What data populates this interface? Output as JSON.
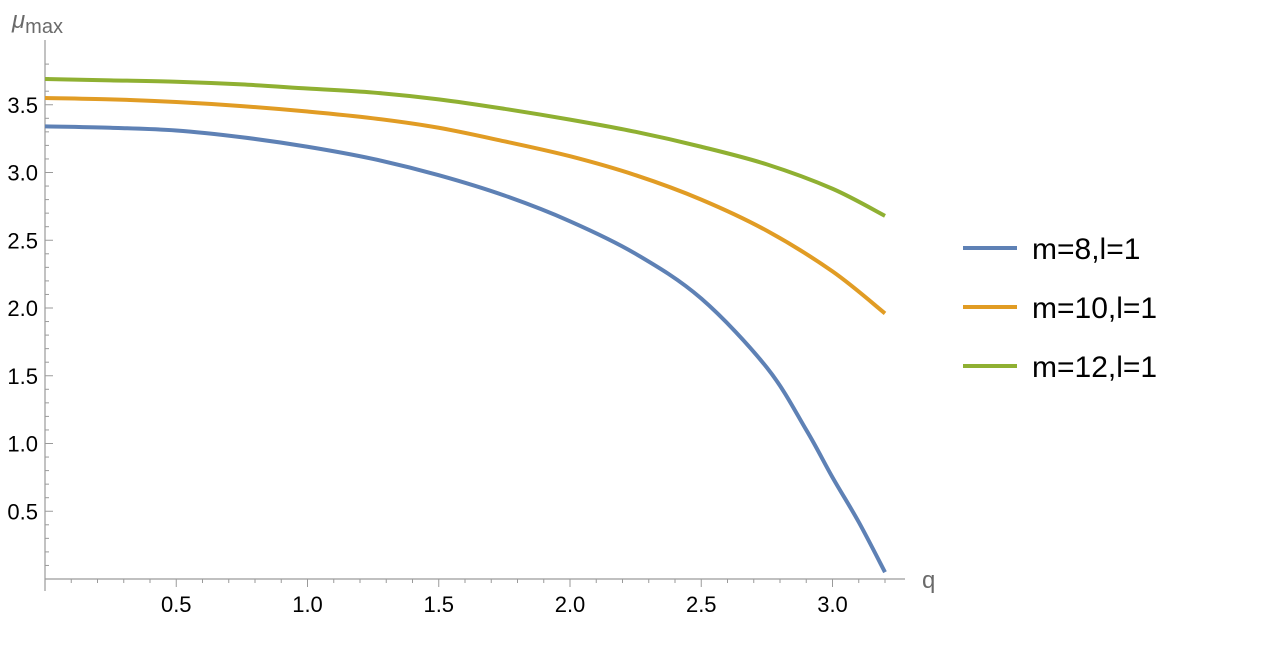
{
  "chart_data": {
    "type": "line",
    "xlabel": "q",
    "ylabel": {
      "main": "μ",
      "subscript": "max"
    },
    "xlim": [
      0,
      3.2
    ],
    "ylim": [
      0,
      3.8
    ],
    "xticks": [
      0.5,
      1.0,
      1.5,
      2.0,
      2.5,
      3.0
    ],
    "xtick_labels": [
      "0.5",
      "1.0",
      "1.5",
      "2.0",
      "2.5",
      "3.0"
    ],
    "yticks": [
      0.5,
      1.0,
      1.5,
      2.0,
      2.5,
      3.0,
      3.5
    ],
    "ytick_labels": [
      "0.5",
      "1.0",
      "1.5",
      "2.0",
      "2.5",
      "3.0",
      "3.5"
    ],
    "grid": false,
    "legend_position": "right",
    "series": [
      {
        "name": "m=8,l=1",
        "color": "#5e81b5",
        "x": [
          0,
          0.25,
          0.5,
          0.75,
          1.0,
          1.25,
          1.5,
          1.75,
          2.0,
          2.25,
          2.5,
          2.75,
          2.9,
          3.0,
          3.1,
          3.2
        ],
        "y": [
          3.34,
          3.33,
          3.31,
          3.26,
          3.19,
          3.1,
          2.98,
          2.83,
          2.64,
          2.4,
          2.07,
          1.56,
          1.1,
          0.75,
          0.42,
          0.05
        ]
      },
      {
        "name": "m=10,l=1",
        "color": "#e19c24",
        "x": [
          0,
          0.25,
          0.5,
          0.75,
          1.0,
          1.25,
          1.5,
          1.75,
          2.0,
          2.25,
          2.5,
          2.75,
          3.0,
          3.2
        ],
        "y": [
          3.55,
          3.54,
          3.52,
          3.49,
          3.45,
          3.4,
          3.33,
          3.23,
          3.12,
          2.98,
          2.8,
          2.57,
          2.27,
          1.96
        ]
      },
      {
        "name": "m=12,l=1",
        "color": "#8fb032",
        "x": [
          0,
          0.25,
          0.5,
          0.75,
          1.0,
          1.25,
          1.5,
          1.75,
          2.0,
          2.25,
          2.5,
          2.75,
          3.0,
          3.2
        ],
        "y": [
          3.69,
          3.68,
          3.67,
          3.65,
          3.62,
          3.59,
          3.54,
          3.47,
          3.39,
          3.3,
          3.19,
          3.06,
          2.88,
          2.68
        ]
      }
    ]
  }
}
